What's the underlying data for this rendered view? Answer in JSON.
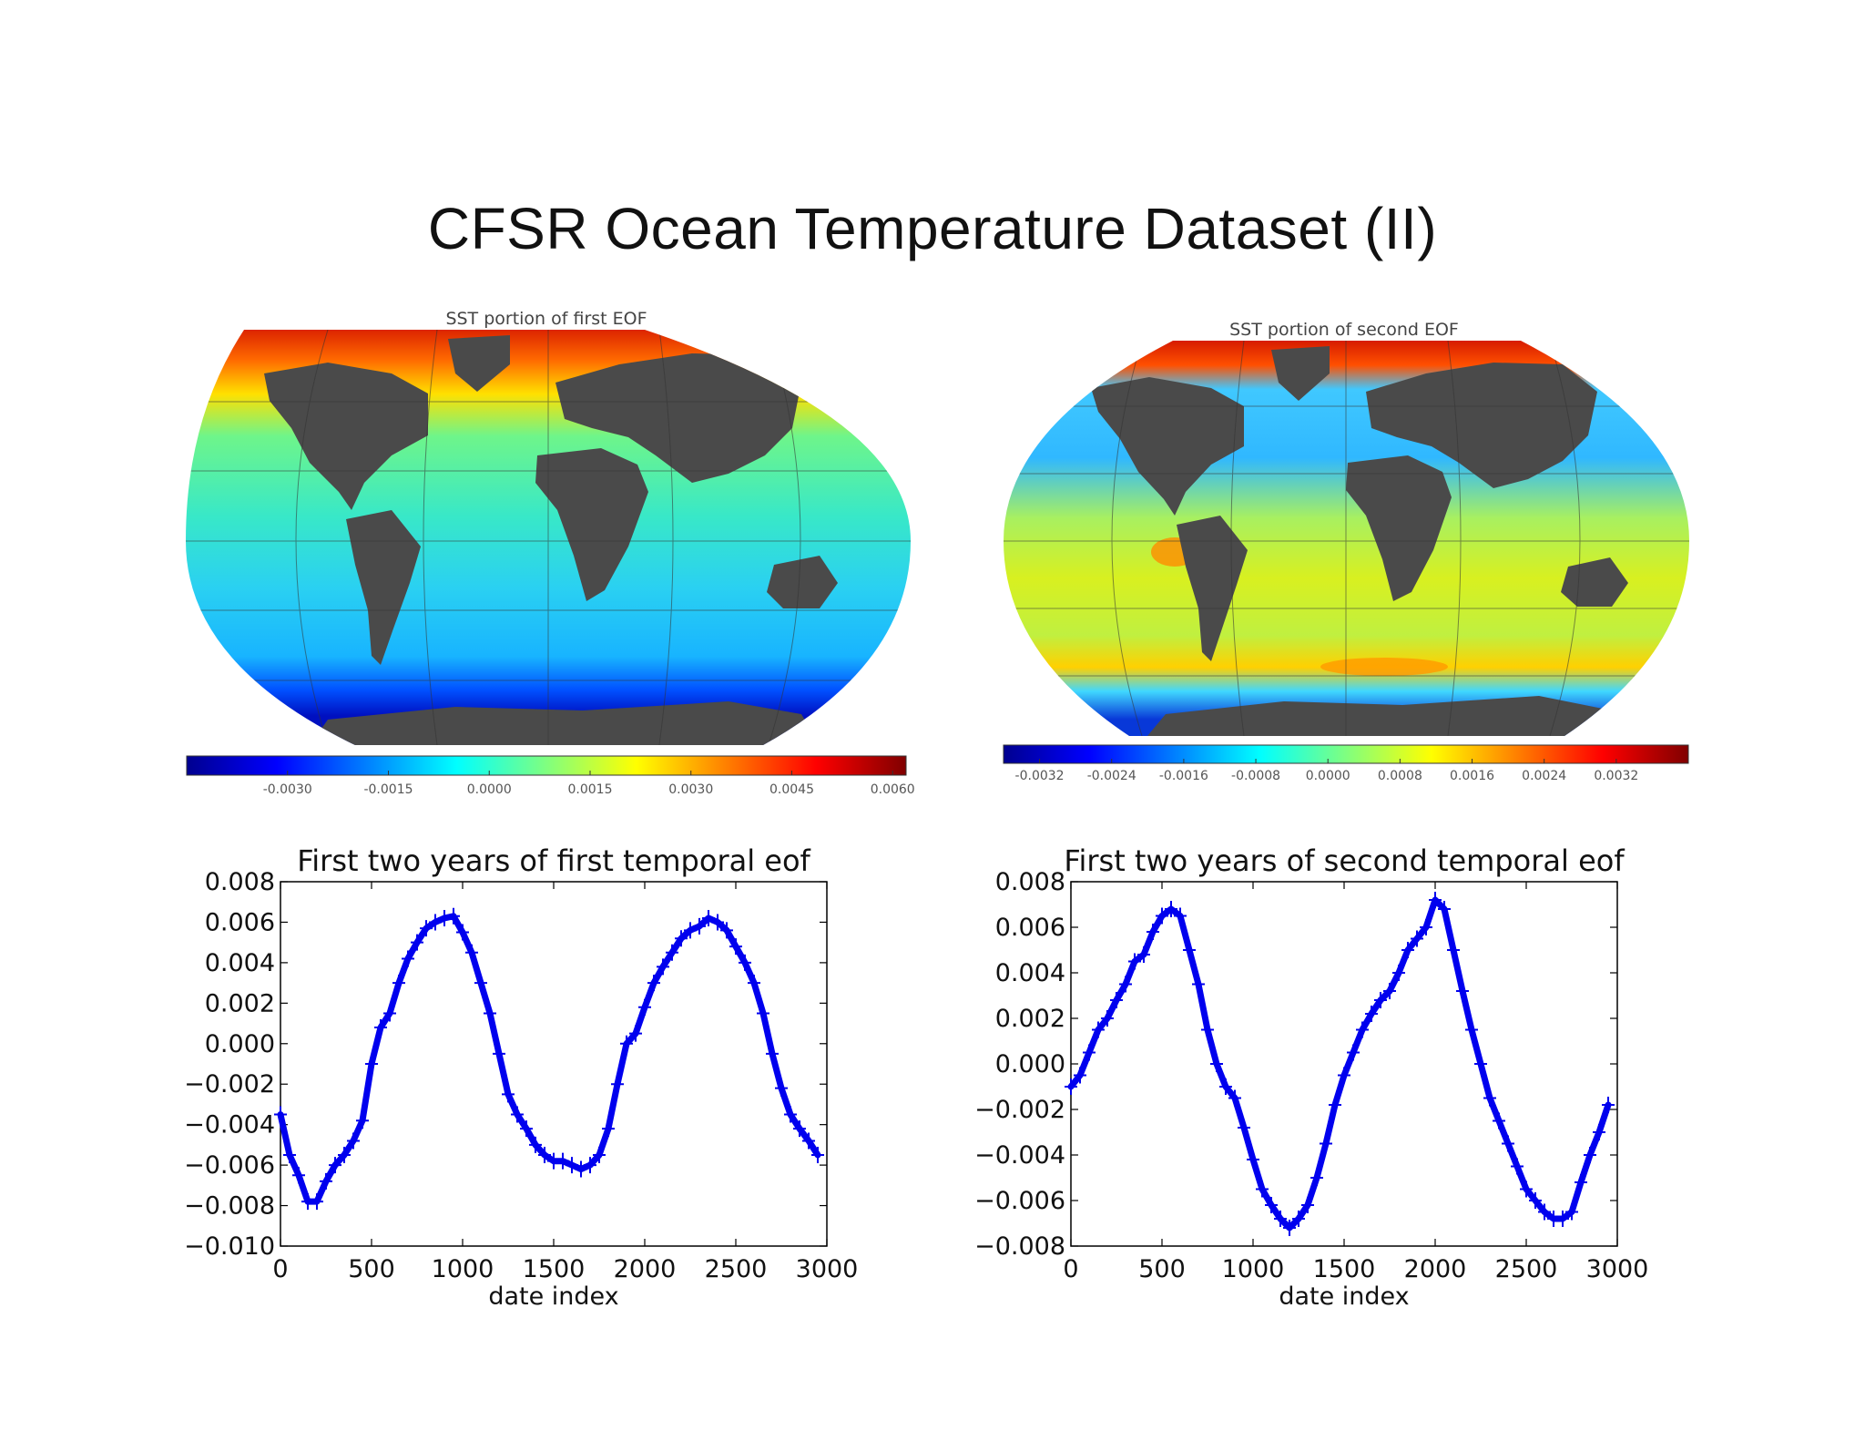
{
  "slide": {
    "title": "CFSR Ocean Temperature Dataset (II)"
  },
  "maps": [
    {
      "title": "SST portion of first EOF",
      "colorbar_ticks": [
        "-0.0030",
        "-0.0015",
        "0.0000",
        "0.0015",
        "0.0030",
        "0.0045",
        "0.0060"
      ],
      "colorbar_range": [
        -0.0045,
        0.0062
      ]
    },
    {
      "title": "SST portion of second EOF",
      "colorbar_ticks": [
        "-0.0032",
        "-0.0024",
        "-0.0016",
        "-0.0008",
        "0.0000",
        "0.0008",
        "0.0016",
        "0.0024",
        "0.0032"
      ],
      "colorbar_range": [
        -0.0036,
        0.004
      ]
    }
  ],
  "colors": {
    "land": "#4a4a4a",
    "series": "#0000ee"
  },
  "chart_data": [
    {
      "type": "line",
      "title": "First two years of first temporal eof",
      "xlabel": "date index",
      "ylabel": "",
      "xlim": [
        0,
        3000
      ],
      "ylim": [
        -0.01,
        0.008
      ],
      "xticks": [
        "0",
        "500",
        "1000",
        "1500",
        "2000",
        "2500",
        "3000"
      ],
      "yticks": [
        "0.008",
        "0.006",
        "0.004",
        "0.002",
        "0.000",
        "−0.002",
        "−0.004",
        "−0.006",
        "−0.008",
        "−0.010"
      ],
      "marker": "+",
      "series": [
        {
          "x": [
            0,
            50,
            100,
            150,
            200,
            250,
            300,
            350,
            400,
            450,
            500,
            550,
            600,
            650,
            700,
            750,
            800,
            850,
            900,
            950,
            1000,
            1050,
            1100,
            1150,
            1200,
            1250,
            1300,
            1350,
            1400,
            1450,
            1500,
            1550,
            1600,
            1650,
            1700,
            1750,
            1800,
            1850,
            1900,
            1950,
            2000,
            2050,
            2100,
            2150,
            2200,
            2250,
            2300,
            2350,
            2400,
            2450,
            2500,
            2550,
            2600,
            2650,
            2700,
            2750,
            2800,
            2850,
            2900,
            2950
          ],
          "y": [
            -0.0035,
            -0.0055,
            -0.0065,
            -0.0078,
            -0.0078,
            -0.0068,
            -0.006,
            -0.0055,
            -0.0048,
            -0.0038,
            -0.001,
            0.0008,
            0.0015,
            0.003,
            0.0042,
            0.005,
            0.0057,
            0.006,
            0.0062,
            0.0063,
            0.0055,
            0.0045,
            0.003,
            0.0015,
            -0.0005,
            -0.0025,
            -0.0035,
            -0.0042,
            -0.005,
            -0.0055,
            -0.0058,
            -0.0058,
            -0.006,
            -0.0062,
            -0.006,
            -0.0055,
            -0.0042,
            -0.002,
            0.0,
            0.0005,
            0.0018,
            0.003,
            0.0038,
            0.0045,
            0.0052,
            0.0056,
            0.0058,
            0.0062,
            0.006,
            0.0056,
            0.0048,
            0.004,
            0.003,
            0.0015,
            -0.0005,
            -0.0022,
            -0.0035,
            -0.0042,
            -0.0048,
            -0.0055
          ]
        }
      ]
    },
    {
      "type": "line",
      "title": "First two years of second temporal eof",
      "xlabel": "date index",
      "ylabel": "",
      "xlim": [
        0,
        3000
      ],
      "ylim": [
        -0.008,
        0.008
      ],
      "xticks": [
        "0",
        "500",
        "1000",
        "1500",
        "2000",
        "2500",
        "3000"
      ],
      "yticks": [
        "0.008",
        "0.006",
        "0.004",
        "0.002",
        "0.000",
        "−0.002",
        "−0.004",
        "−0.006",
        "−0.008"
      ],
      "marker": "+",
      "series": [
        {
          "x": [
            0,
            50,
            100,
            150,
            200,
            250,
            300,
            350,
            400,
            450,
            500,
            550,
            600,
            650,
            700,
            750,
            800,
            850,
            900,
            950,
            1000,
            1050,
            1100,
            1150,
            1200,
            1250,
            1300,
            1350,
            1400,
            1450,
            1500,
            1550,
            1600,
            1650,
            1700,
            1750,
            1800,
            1850,
            1900,
            1950,
            2000,
            2050,
            2100,
            2150,
            2200,
            2250,
            2300,
            2350,
            2400,
            2450,
            2500,
            2550,
            2600,
            2650,
            2700,
            2750,
            2800,
            2850,
            2900,
            2950
          ],
          "y": [
            -0.001,
            -0.0005,
            0.0005,
            0.0015,
            0.002,
            0.0028,
            0.0035,
            0.0045,
            0.0048,
            0.0058,
            0.0065,
            0.0068,
            0.0065,
            0.005,
            0.0035,
            0.0015,
            0.0,
            -0.001,
            -0.0015,
            -0.0028,
            -0.0042,
            -0.0055,
            -0.0062,
            -0.0068,
            -0.0072,
            -0.0068,
            -0.0062,
            -0.005,
            -0.0035,
            -0.0018,
            -0.0005,
            0.0005,
            0.0015,
            0.0022,
            0.0028,
            0.0032,
            0.004,
            0.005,
            0.0055,
            0.006,
            0.0072,
            0.0068,
            0.005,
            0.0032,
            0.0015,
            0.0,
            -0.0015,
            -0.0025,
            -0.0035,
            -0.0045,
            -0.0055,
            -0.006,
            -0.0065,
            -0.0068,
            -0.0068,
            -0.0065,
            -0.0052,
            -0.004,
            -0.003,
            -0.0018
          ]
        }
      ]
    }
  ]
}
